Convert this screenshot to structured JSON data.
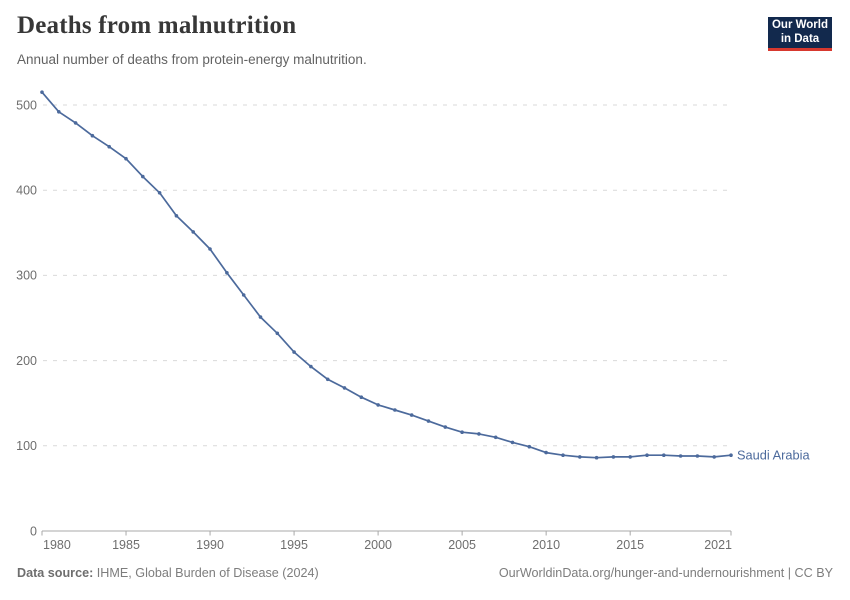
{
  "header": {
    "title": "Deaths from malnutrition",
    "subtitle": "Annual number of deaths from protein-energy malnutrition.",
    "logo": {
      "line1": "Our World",
      "line2": "in Data"
    }
  },
  "chart_data": {
    "type": "line",
    "title": "Deaths from malnutrition",
    "subtitle": "Annual number of deaths from protein-energy malnutrition.",
    "entity": "Saudi Arabia",
    "x": [
      1980,
      1981,
      1982,
      1983,
      1984,
      1985,
      1986,
      1987,
      1988,
      1989,
      1990,
      1991,
      1992,
      1993,
      1994,
      1995,
      1996,
      1997,
      1998,
      1999,
      2000,
      2001,
      2002,
      2003,
      2004,
      2005,
      2006,
      2007,
      2008,
      2009,
      2010,
      2011,
      2012,
      2013,
      2014,
      2015,
      2016,
      2017,
      2018,
      2019,
      2020,
      2021
    ],
    "values": [
      515,
      492,
      479,
      464,
      451,
      437,
      416,
      397,
      370,
      351,
      331,
      303,
      277,
      251,
      232,
      210,
      193,
      178,
      168,
      157,
      148,
      142,
      136,
      129,
      122,
      116,
      114,
      110,
      104,
      99,
      92,
      89,
      87,
      86,
      87,
      87,
      89,
      89,
      88,
      88,
      87,
      89
    ],
    "xlabel": "",
    "ylabel": "",
    "ylim": [
      0,
      500
    ],
    "yticks": [
      0,
      100,
      200,
      300,
      400,
      500
    ],
    "xticks": [
      1980,
      1985,
      1990,
      1995,
      2000,
      2005,
      2010,
      2015,
      2021
    ],
    "grid": "horizontal-dashed",
    "legend_position": "line-end-label",
    "markers": true
  },
  "footer": {
    "source_label": "Data source:",
    "source_value": " IHME, Global Burden of Disease (2024)",
    "link": "OurWorldinData.org/hunger-and-undernourishment | CC BY"
  },
  "colors": {
    "line": "#4c6a9c",
    "entity_label": "#4c6a9c",
    "grid": "#d9d9d9",
    "axis": "#a8a8a8",
    "tick_label": "#6e6e6e",
    "title": "#373737",
    "subtitle": "#636363",
    "footer_text": "#7d7d7d",
    "logo_bg": "#12294d",
    "logo_red": "#d7382e"
  }
}
